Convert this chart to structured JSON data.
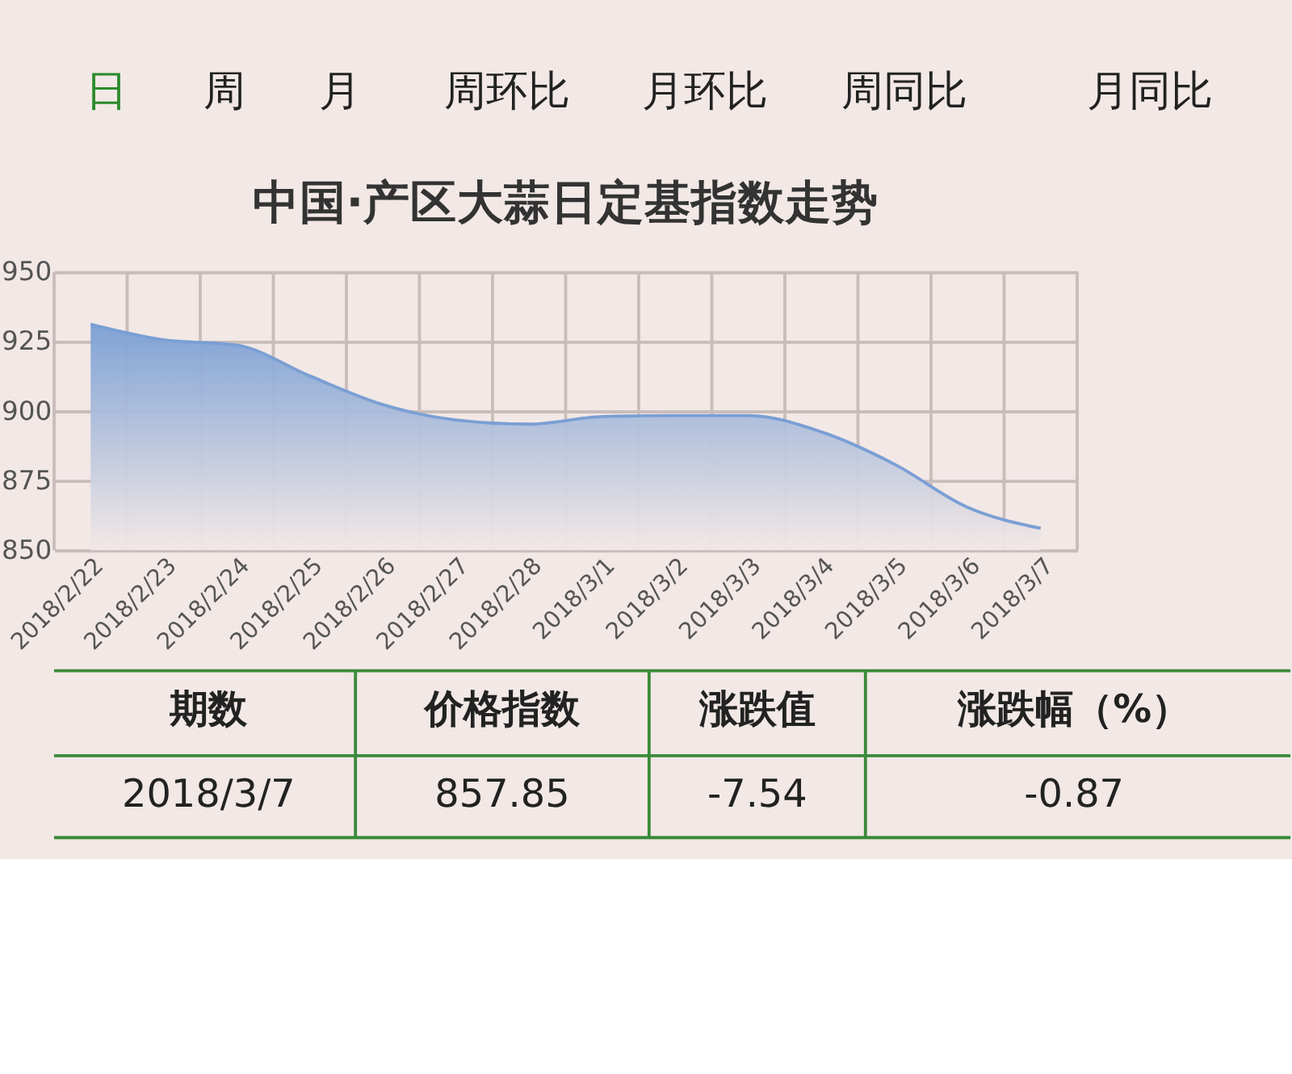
{
  "chart_data": {
    "type": "area",
    "title": "中国·产区大蒜日定基指数走势",
    "categories": [
      "2018/2/22",
      "2018/2/23",
      "2018/2/24",
      "2018/2/25",
      "2018/2/26",
      "2018/2/27",
      "2018/2/28",
      "2018/3/1",
      "2018/3/2",
      "2018/3/3",
      "2018/3/4",
      "2018/3/5",
      "2018/3/6",
      "2018/3/7"
    ],
    "series": [
      {
        "color": "#7a9fd4",
        "values": [
          931.2,
          925.6,
          923.7,
          912.6,
          902.3,
          896.8,
          895.3,
          898,
          898.4,
          898.4,
          892.5,
          880.9,
          865.4,
          857.85
        ]
      }
    ],
    "ylim": [
      850,
      950
    ],
    "yticks": [
      850,
      875,
      900,
      925,
      950
    ],
    "grid": true,
    "annotations": [
      "日",
      "周",
      "月",
      "周环比",
      "月环比",
      "周同比",
      "月同比",
      "期数",
      "价格指数",
      "涨跌值",
      "涨跌幅（%）",
      "2018/3/7",
      "857.85",
      "-7.54",
      "-0.87"
    ]
  }
}
